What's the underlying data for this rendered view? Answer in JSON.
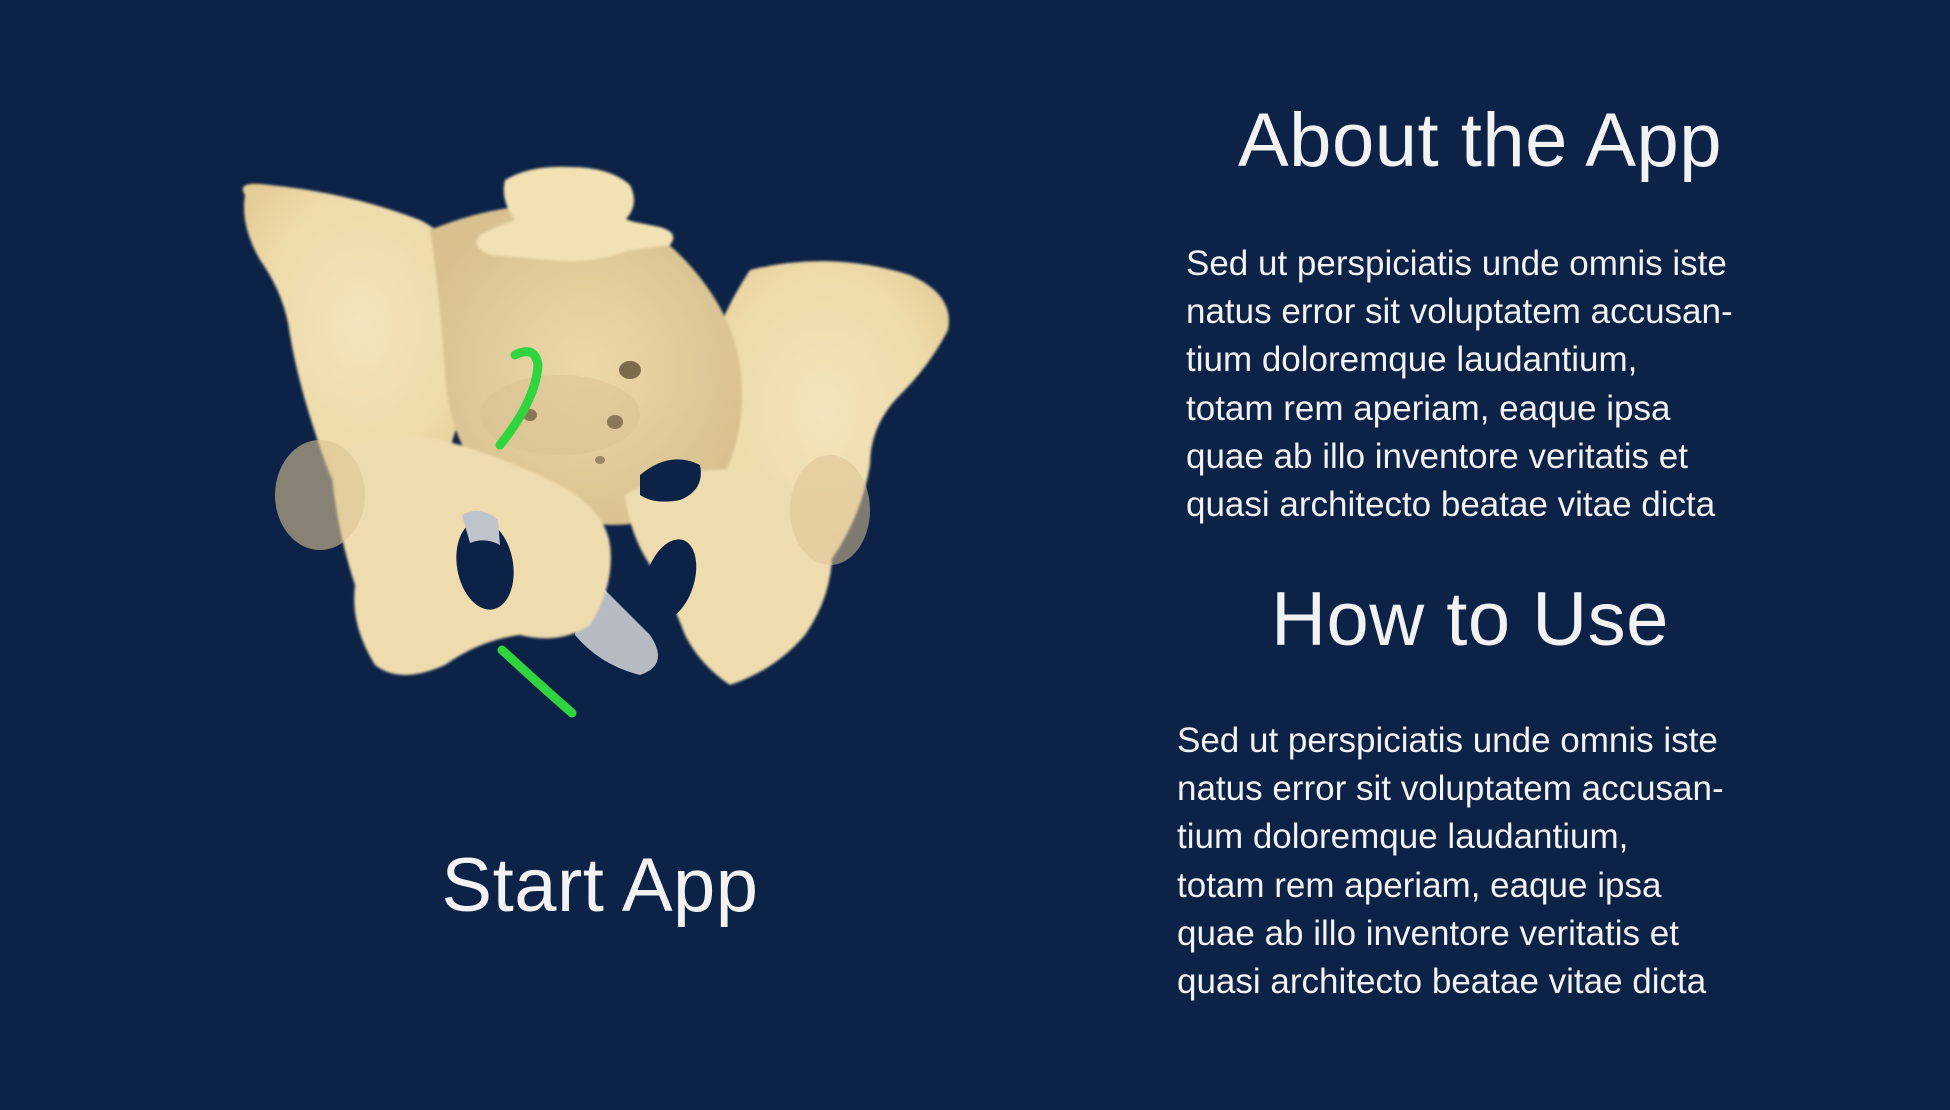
{
  "start_button": {
    "label": "Start App"
  },
  "about": {
    "title": "About the App",
    "body": "Sed ut perspiciatis unde omnis iste\nnatus error sit voluptatem accusan-\ntium doloremque laudantium,\ntotam rem aperiam, eaque ipsa\nquae ab illo inventore veritatis et\nquasi architecto beatae vitae dicta"
  },
  "how_to_use": {
    "title": "How to Use",
    "body": "Sed ut perspiciatis unde omnis iste\nnatus error sit voluptatem accusan-\ntium doloremque laudantium,\ntotam rem aperiam, eaque ipsa\nquae ab illo inventore veritatis et\nquasi architecto beatae vitae dicta"
  },
  "colors": {
    "background": "#0c2246",
    "text": "#f2f2f2",
    "bone": "#f1dfb2",
    "bone_shadow": "#dcc393",
    "highlight_curve": "#2fd43f",
    "hip_gray": "#bcc0c8"
  },
  "illustration": {
    "subject": "pelvis-3d-model"
  }
}
